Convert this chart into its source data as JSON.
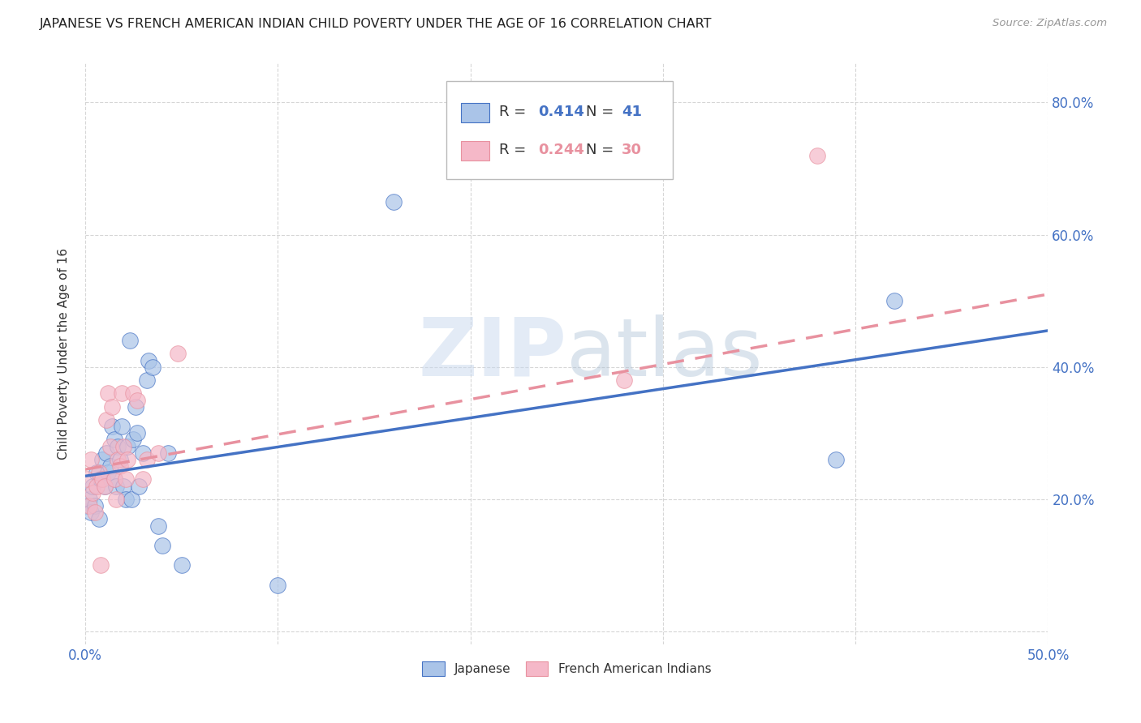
{
  "title": "JAPANESE VS FRENCH AMERICAN INDIAN CHILD POVERTY UNDER THE AGE OF 16 CORRELATION CHART",
  "source": "Source: ZipAtlas.com",
  "ylabel": "Child Poverty Under the Age of 16",
  "xlim": [
    0.0,
    0.5
  ],
  "ylim": [
    -0.02,
    0.86
  ],
  "xticks": [
    0.0,
    0.1,
    0.2,
    0.3,
    0.4,
    0.5
  ],
  "xticklabels": [
    "0.0%",
    "",
    "",
    "",
    "",
    "50.0%"
  ],
  "ytick_positions": [
    0.0,
    0.2,
    0.4,
    0.6,
    0.8
  ],
  "ytick_labels": [
    "",
    "20.0%",
    "40.0%",
    "60.0%",
    "80.0%"
  ],
  "japanese_color": "#aac4e8",
  "french_color": "#f5b8c8",
  "japanese_line_color": "#4472c4",
  "french_line_color": "#e8919f",
  "R_japanese": 0.414,
  "N_japanese": 41,
  "R_french": 0.244,
  "N_french": 30,
  "watermark": "ZIPatlas",
  "japanese_x": [
    0.001,
    0.002,
    0.003,
    0.004,
    0.005,
    0.006,
    0.007,
    0.008,
    0.009,
    0.01,
    0.011,
    0.012,
    0.013,
    0.014,
    0.015,
    0.015,
    0.016,
    0.017,
    0.018,
    0.019,
    0.02,
    0.021,
    0.022,
    0.023,
    0.024,
    0.025,
    0.026,
    0.027,
    0.028,
    0.03,
    0.032,
    0.033,
    0.035,
    0.038,
    0.04,
    0.043,
    0.05,
    0.1,
    0.16,
    0.39,
    0.42
  ],
  "japanese_y": [
    0.19,
    0.2,
    0.18,
    0.22,
    0.19,
    0.24,
    0.17,
    0.23,
    0.26,
    0.22,
    0.27,
    0.24,
    0.25,
    0.31,
    0.23,
    0.29,
    0.22,
    0.28,
    0.26,
    0.31,
    0.22,
    0.2,
    0.28,
    0.44,
    0.2,
    0.29,
    0.34,
    0.3,
    0.22,
    0.27,
    0.38,
    0.41,
    0.4,
    0.16,
    0.13,
    0.27,
    0.1,
    0.07,
    0.65,
    0.26,
    0.5
  ],
  "french_x": [
    0.001,
    0.002,
    0.003,
    0.004,
    0.005,
    0.006,
    0.007,
    0.008,
    0.009,
    0.01,
    0.011,
    0.012,
    0.013,
    0.014,
    0.015,
    0.016,
    0.017,
    0.018,
    0.019,
    0.02,
    0.021,
    0.022,
    0.025,
    0.027,
    0.03,
    0.032,
    0.038,
    0.048,
    0.28,
    0.38
  ],
  "french_y": [
    0.23,
    0.19,
    0.26,
    0.21,
    0.18,
    0.22,
    0.24,
    0.1,
    0.23,
    0.22,
    0.32,
    0.36,
    0.28,
    0.34,
    0.23,
    0.2,
    0.26,
    0.25,
    0.36,
    0.28,
    0.23,
    0.26,
    0.36,
    0.35,
    0.23,
    0.26,
    0.27,
    0.42,
    0.38,
    0.72
  ],
  "jp_line_x0": 0.0,
  "jp_line_y0": 0.235,
  "jp_line_x1": 0.5,
  "jp_line_y1": 0.455,
  "fr_line_x0": 0.0,
  "fr_line_y0": 0.245,
  "fr_line_x1": 0.5,
  "fr_line_y1": 0.51
}
